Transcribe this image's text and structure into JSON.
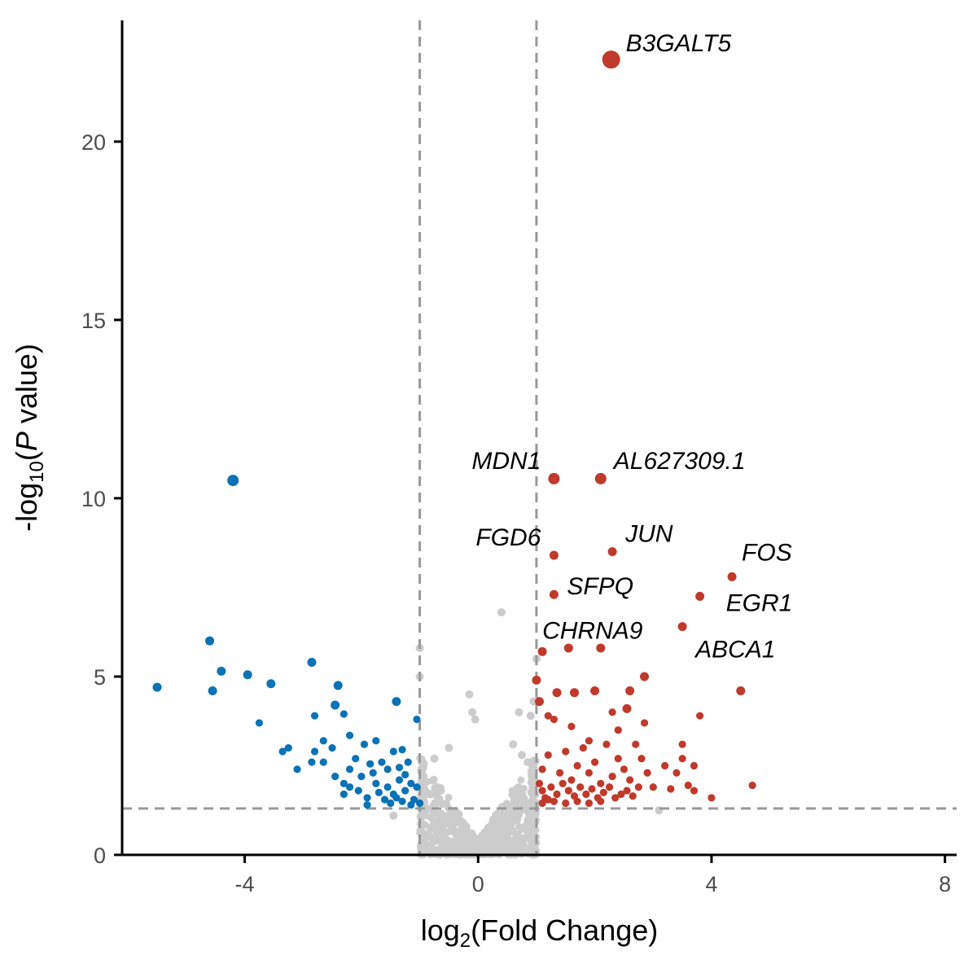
{
  "chart_data": {
    "type": "scatter",
    "subtype": "volcano",
    "title": "",
    "xlabel": "log2(Fold Change)",
    "ylabel": "-log10(P value)",
    "xlim": [
      -6.1,
      8.2
    ],
    "ylim": [
      0,
      23.4
    ],
    "x_ticks": [
      -4,
      0,
      4,
      8
    ],
    "y_ticks": [
      0,
      5,
      10,
      15,
      20
    ],
    "thresholds": {
      "log2fc": [
        -1,
        1
      ],
      "neg_log10_p": 1.3
    },
    "grid": false,
    "colors": {
      "up": "#c0392b",
      "down": "#0a72b5",
      "ns": "#cccccc",
      "threshold_line": "#999999",
      "axis": "#000000"
    },
    "series": [
      {
        "name": "Up",
        "points": [
          [
            2.28,
            22.3
          ],
          [
            1.3,
            10.55
          ],
          [
            2.1,
            10.55
          ],
          [
            1.3,
            8.4
          ],
          [
            2.3,
            8.5
          ],
          [
            4.35,
            7.8
          ],
          [
            1.3,
            7.3
          ],
          [
            3.8,
            7.25
          ],
          [
            3.5,
            6.4
          ],
          [
            1.1,
            5.7
          ],
          [
            1.55,
            5.8
          ],
          [
            2.1,
            5.8
          ],
          [
            1.0,
            4.9
          ],
          [
            1.35,
            4.55
          ],
          [
            1.65,
            4.55
          ],
          [
            2.0,
            4.6
          ],
          [
            2.6,
            4.6
          ],
          [
            2.85,
            5.0
          ],
          [
            2.3,
            4.0
          ],
          [
            2.55,
            4.1
          ],
          [
            4.5,
            4.6
          ],
          [
            3.8,
            3.9
          ],
          [
            1.3,
            3.8
          ],
          [
            1.6,
            3.6
          ],
          [
            2.4,
            3.5
          ],
          [
            2.85,
            3.7
          ],
          [
            1.05,
            4.3
          ],
          [
            1.2,
            3.9
          ],
          [
            1.9,
            3.2
          ],
          [
            2.7,
            3.1
          ],
          [
            3.5,
            3.1
          ],
          [
            3.5,
            2.7
          ],
          [
            3.2,
            2.5
          ],
          [
            2.8,
            2.7
          ],
          [
            3.4,
            2.3
          ],
          [
            3.7,
            2.5
          ],
          [
            4.7,
            1.95
          ],
          [
            4.0,
            1.6
          ],
          [
            3.7,
            1.8
          ],
          [
            2.6,
            2.1
          ],
          [
            1.1,
            2.4
          ],
          [
            1.2,
            2.8
          ],
          [
            1.4,
            2.3
          ],
          [
            1.5,
            2.9
          ],
          [
            1.6,
            2.1
          ],
          [
            1.7,
            2.5
          ],
          [
            1.8,
            3.0
          ],
          [
            1.9,
            2.3
          ],
          [
            2.0,
            2.6
          ],
          [
            2.1,
            2.0
          ],
          [
            2.2,
            3.1
          ],
          [
            2.3,
            2.2
          ],
          [
            2.4,
            2.7
          ],
          [
            2.5,
            2.4
          ],
          [
            1.05,
            2.0
          ],
          [
            1.1,
            1.8
          ],
          [
            1.15,
            1.6
          ],
          [
            1.25,
            1.9
          ],
          [
            1.35,
            1.7
          ],
          [
            1.45,
            2.0
          ],
          [
            1.55,
            1.8
          ],
          [
            1.65,
            1.65
          ],
          [
            1.75,
            1.9
          ],
          [
            1.85,
            1.7
          ],
          [
            1.95,
            1.85
          ],
          [
            2.05,
            1.6
          ],
          [
            2.15,
            1.75
          ],
          [
            2.25,
            1.9
          ],
          [
            2.35,
            1.6
          ],
          [
            2.45,
            1.7
          ],
          [
            2.55,
            1.8
          ],
          [
            2.65,
            1.65
          ],
          [
            2.75,
            1.9
          ],
          [
            1.1,
            1.45
          ],
          [
            1.3,
            1.5
          ],
          [
            1.5,
            1.45
          ],
          [
            1.7,
            1.5
          ],
          [
            1.9,
            1.45
          ],
          [
            2.1,
            1.5
          ],
          [
            2.9,
            2.3
          ],
          [
            3.0,
            1.9
          ],
          [
            3.3,
            1.85
          ],
          [
            3.6,
            1.95
          ],
          [
            1.2,
            1.55
          ]
        ]
      },
      {
        "name": "Down",
        "points": [
          [
            -4.2,
            10.5
          ],
          [
            -4.6,
            6.0
          ],
          [
            -5.5,
            4.7
          ],
          [
            -4.4,
            5.15
          ],
          [
            -4.55,
            4.6
          ],
          [
            -3.95,
            5.05
          ],
          [
            -3.55,
            4.8
          ],
          [
            -2.85,
            5.4
          ],
          [
            -2.4,
            4.75
          ],
          [
            -3.75,
            3.7
          ],
          [
            -2.8,
            3.9
          ],
          [
            -2.45,
            4.2
          ],
          [
            -2.3,
            3.95
          ],
          [
            -1.4,
            4.3
          ],
          [
            -1.05,
            3.8
          ],
          [
            -3.25,
            3.0
          ],
          [
            -3.35,
            2.9
          ],
          [
            -3.1,
            2.4
          ],
          [
            -2.8,
            2.9
          ],
          [
            -2.65,
            3.2
          ],
          [
            -2.5,
            3.0
          ],
          [
            -2.2,
            3.35
          ],
          [
            -1.95,
            3.1
          ],
          [
            -1.75,
            3.2
          ],
          [
            -1.65,
            2.6
          ],
          [
            -1.45,
            2.9
          ],
          [
            -1.3,
            2.95
          ],
          [
            -2.85,
            2.6
          ],
          [
            -2.65,
            2.6
          ],
          [
            -2.1,
            2.7
          ],
          [
            -1.85,
            2.55
          ],
          [
            -1.55,
            2.4
          ],
          [
            -1.35,
            2.45
          ],
          [
            -1.2,
            2.6
          ],
          [
            -2.2,
            2.4
          ],
          [
            -2.0,
            2.2
          ],
          [
            -1.8,
            2.3
          ],
          [
            -2.45,
            2.2
          ],
          [
            -2.3,
            2.0
          ],
          [
            -2.05,
            1.8
          ],
          [
            -1.75,
            2.0
          ],
          [
            -1.55,
            1.9
          ],
          [
            -1.35,
            2.1
          ],
          [
            -1.15,
            2.0
          ],
          [
            -1.05,
            1.9
          ],
          [
            -1.45,
            1.7
          ],
          [
            -1.25,
            1.8
          ],
          [
            -1.6,
            1.55
          ],
          [
            -1.9,
            1.6
          ],
          [
            -2.3,
            1.7
          ],
          [
            -1.7,
            1.75
          ],
          [
            -1.1,
            1.55
          ],
          [
            -1.3,
            1.5
          ],
          [
            -1.5,
            1.45
          ],
          [
            -1.0,
            1.45
          ],
          [
            -2.2,
            1.9
          ],
          [
            -1.25,
            2.25
          ],
          [
            -1.15,
            1.4
          ],
          [
            -1.9,
            1.4
          ],
          [
            -1.4,
            1.6
          ]
        ]
      }
    ],
    "annotations": [
      {
        "label": "B3GALT5",
        "x": 2.28,
        "y": 22.3,
        "anchor": "start"
      },
      {
        "label": "MDN1",
        "x": 1.3,
        "y": 10.55,
        "anchor": "end"
      },
      {
        "label": "AL627309.1",
        "x": 2.1,
        "y": 10.55,
        "anchor": "start"
      },
      {
        "label": "FGD6",
        "x": 1.3,
        "y": 8.4,
        "anchor": "end"
      },
      {
        "label": "JUN",
        "x": 2.3,
        "y": 8.5,
        "anchor": "start"
      },
      {
        "label": "FOS",
        "x": 4.35,
        "y": 7.8,
        "anchor": "start"
      },
      {
        "label": "SFPQ",
        "x": 1.3,
        "y": 7.3,
        "anchor": "start"
      },
      {
        "label": "EGR1",
        "x": 3.8,
        "y": 7.25,
        "anchor": "start"
      },
      {
        "label": "CHRNA9",
        "x": 1.1,
        "y": 5.7,
        "anchor": "start"
      },
      {
        "label": "ABCA1",
        "x": 3.5,
        "y": 6.4,
        "anchor": "start"
      }
    ]
  }
}
